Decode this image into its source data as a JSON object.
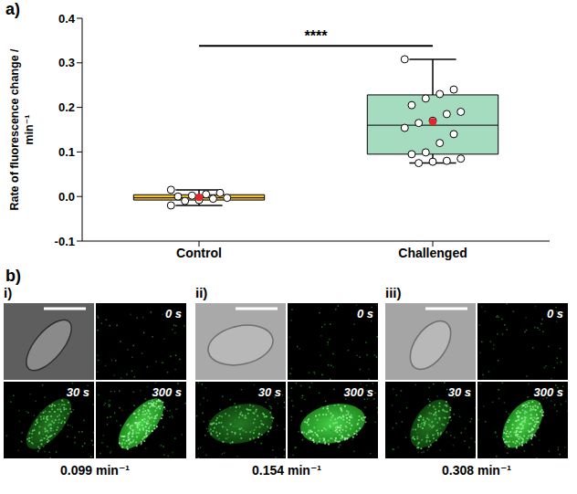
{
  "chart_data": {
    "type": "box",
    "panel_label": "a)",
    "y_label": "Rate of fluorescence change / min⁻¹",
    "categories": [
      "Control",
      "Challenged"
    ],
    "ylim": [
      -0.1,
      0.4
    ],
    "yticks": [
      -0.1,
      {
        "value": 0,
        "label": "0.0"
      },
      0.1,
      0.2,
      0.3,
      0.4
    ],
    "boxes": [
      {
        "category": "Control",
        "color": "#f2c12e",
        "whisker_low": -0.02,
        "q1": -0.008,
        "median": -0.003,
        "q3": 0.004,
        "whisker_high": 0.015,
        "mean": -0.002,
        "mean_color": "#e3262b",
        "points": [
          0.015,
          0.008,
          0.005,
          0.002,
          0.0,
          -0.003,
          -0.005,
          -0.008,
          -0.01,
          -0.02
        ]
      },
      {
        "category": "Challenged",
        "color": "#a5dcc0",
        "whisker_low": 0.075,
        "q1": 0.095,
        "median": 0.16,
        "q3": 0.228,
        "whisker_high": 0.308,
        "mean": 0.168,
        "mean_color": "#e3262b",
        "points": [
          0.308,
          0.24,
          0.23,
          0.22,
          0.205,
          0.19,
          0.185,
          0.17,
          0.165,
          0.154,
          0.14,
          0.12,
          0.099,
          0.095,
          0.085,
          0.08,
          0.078,
          0.075
        ]
      }
    ],
    "annotations": [
      {
        "text": "****",
        "between": [
          "Control",
          "Challenged"
        ]
      }
    ]
  },
  "panel_b": {
    "label": "b)",
    "panels": [
      {
        "label": "i)",
        "frames": [
          "0 s",
          "30 s",
          "300 s"
        ],
        "rate": "0.099 min⁻¹"
      },
      {
        "label": "ii)",
        "frames": [
          "0 s",
          "30 s",
          "300 s"
        ],
        "rate": "0.154 min⁻¹"
      },
      {
        "label": "iii)",
        "frames": [
          "0 s",
          "30 s",
          "300 s"
        ],
        "rate": "0.308 min⁻¹"
      }
    ]
  }
}
